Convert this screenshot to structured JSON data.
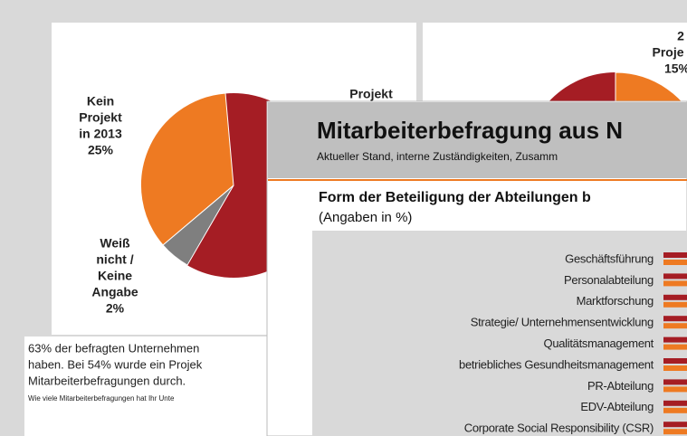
{
  "left_slide": {
    "pie_labels": [
      {
        "lines": [
          "Kein",
          "Projekt",
          "in 2013",
          "25%"
        ]
      },
      {
        "lines": [
          "Weiß",
          "nicht /",
          "Keine",
          "Angabe",
          "2%"
        ]
      },
      {
        "lines": [
          "Projekt"
        ]
      }
    ],
    "body_text": [
      "63% der befragten Unternehmen",
      "haben. Bei 54% wurde ein Projek",
      "Mitarbeiterbefragungen durch."
    ],
    "footnote": "Wie viele Mitarbeiterbefragungen hat Ihr Unte"
  },
  "right_slide": {
    "pie_label_lines": [
      "2",
      "Proje",
      "15%"
    ]
  },
  "front_slide": {
    "title": "Mitarbeiterbefragung aus N",
    "subtitle": "Aktueller Stand, interne Zuständigkeiten, Zusamm",
    "chart_title": "Form der Beteiligung der Abteilungen b",
    "chart_subtitle": "(Angaben in %)",
    "categories": [
      "Geschäftsführung",
      "Personalabteilung",
      "Marktforschung",
      "Strategie/ Unternehmensentwicklung",
      "Qualitätsmanagement",
      "betriebliches Gesundheitsmanagement",
      "PR-Abteilung",
      "EDV-Abteilung",
      "Corporate Social Responsibility (CSR)"
    ]
  }
}
